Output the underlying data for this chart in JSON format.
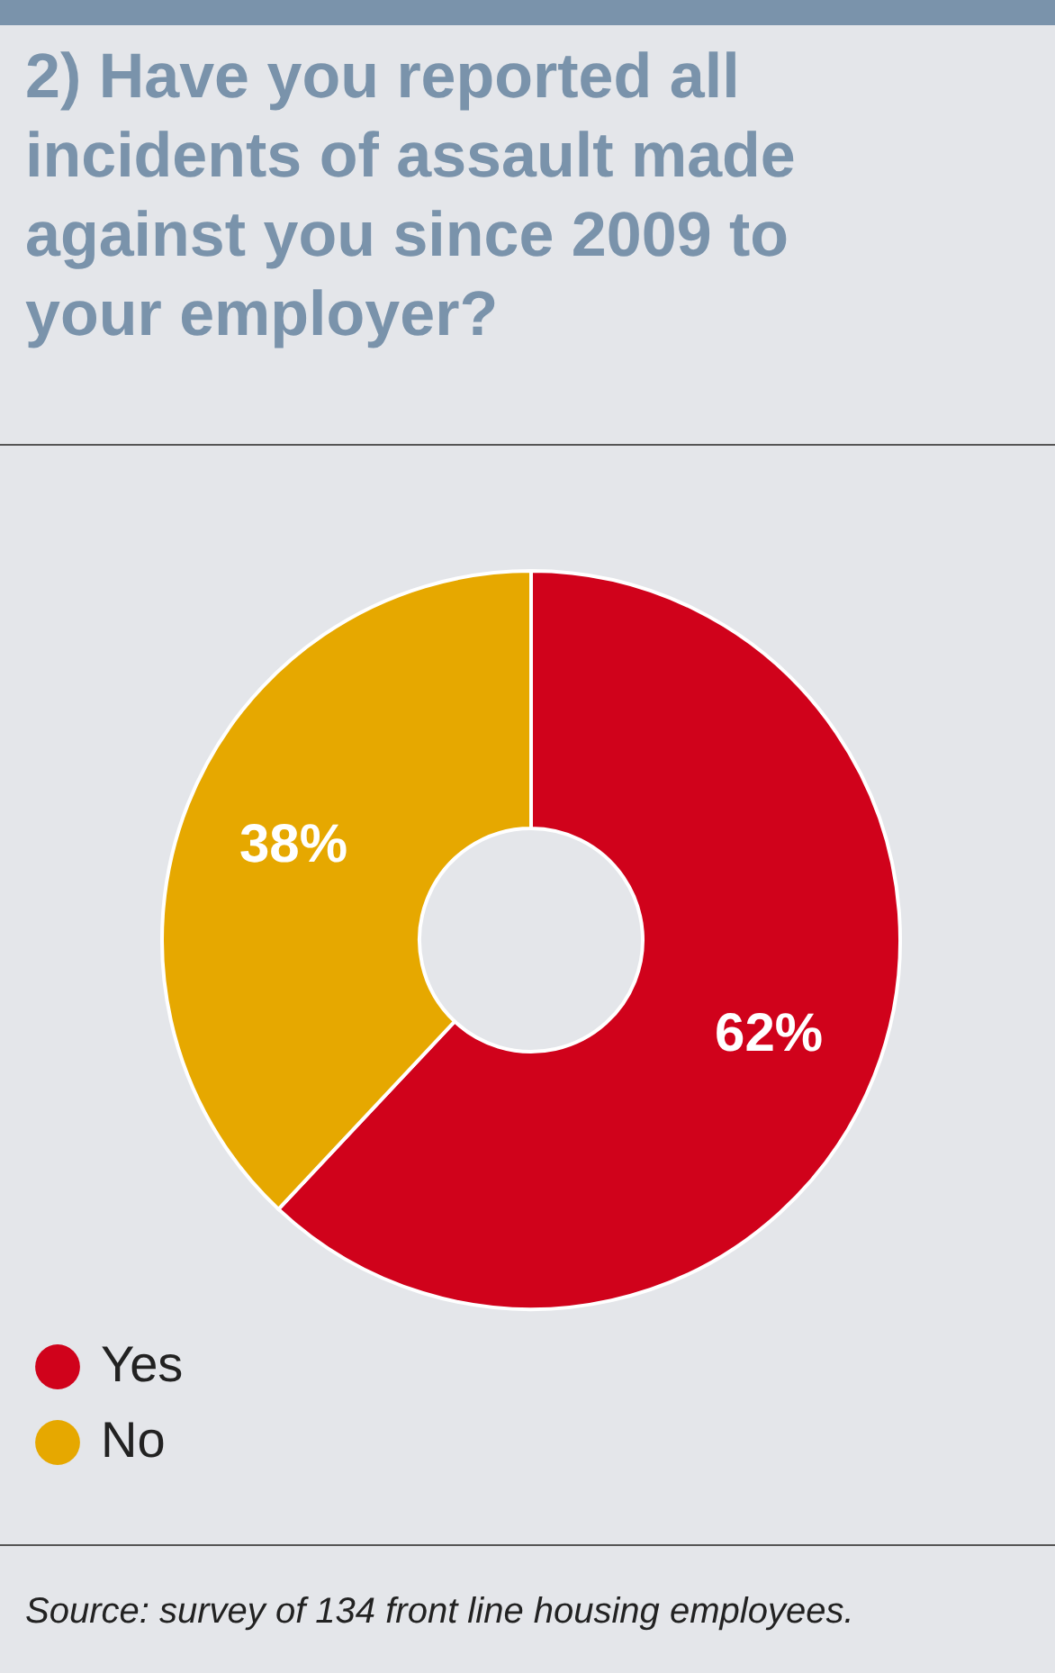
{
  "chart_data": {
    "type": "donut",
    "title": "2) Have you reported all incidents of assault made against you since 2009 to your employer?",
    "categories": [
      "Yes",
      "No"
    ],
    "values": [
      62,
      38
    ],
    "colors": [
      "#d0021b",
      "#e6a800"
    ],
    "value_labels": [
      "62%",
      "38%"
    ],
    "legend": "bottom left",
    "annotations": [
      "Source: survey of 134 front line housing employees."
    ]
  }
}
